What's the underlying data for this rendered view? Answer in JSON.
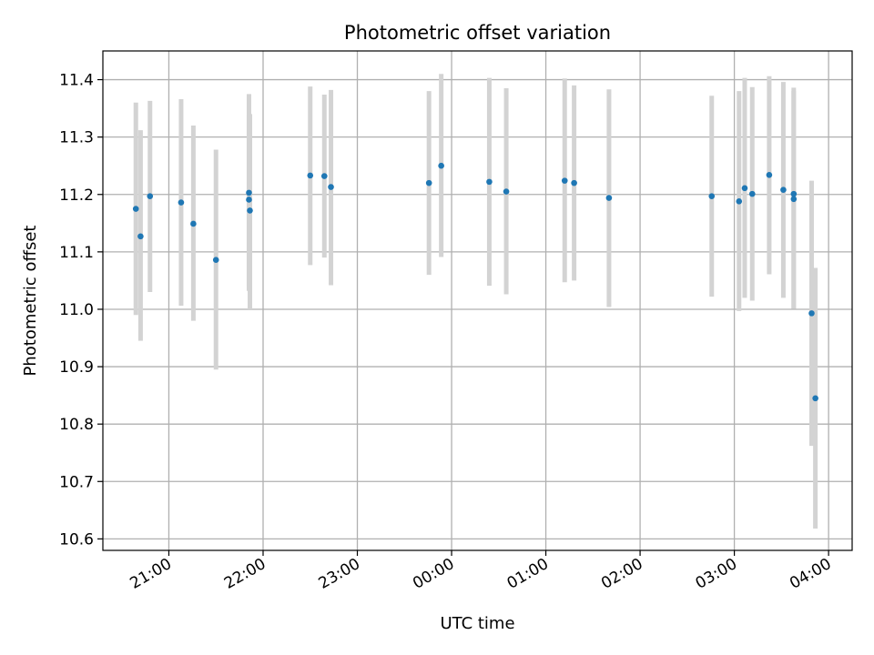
{
  "chart_data": {
    "type": "scatter",
    "title": "Photometric offset variation",
    "xlabel": "UTC time",
    "ylabel": "Photometric offset",
    "grid": true,
    "legend": "none",
    "colors": {
      "point": "#1f77b4",
      "errorbar": "#d3d3d3",
      "grid": "#b0b0b0"
    },
    "xlim": [
      -3.7,
      4.25
    ],
    "ylim": [
      10.58,
      11.45
    ],
    "xticks": [
      {
        "value": -3,
        "label": "21:00"
      },
      {
        "value": -2,
        "label": "22:00"
      },
      {
        "value": -1,
        "label": "23:00"
      },
      {
        "value": 0,
        "label": "00:00"
      },
      {
        "value": 1,
        "label": "01:00"
      },
      {
        "value": 2,
        "label": "02:00"
      },
      {
        "value": 3,
        "label": "03:00"
      },
      {
        "value": 4,
        "label": "04:00"
      }
    ],
    "yticks": [
      {
        "value": 10.6,
        "label": "10.6"
      },
      {
        "value": 10.7,
        "label": "10.7"
      },
      {
        "value": 10.8,
        "label": "10.8"
      },
      {
        "value": 10.9,
        "label": "10.9"
      },
      {
        "value": 11.0,
        "label": "11.0"
      },
      {
        "value": 11.1,
        "label": "11.1"
      },
      {
        "value": 11.2,
        "label": "11.2"
      },
      {
        "value": 11.3,
        "label": "11.3"
      },
      {
        "value": 11.4,
        "label": "11.4"
      }
    ],
    "points": [
      {
        "x": -3.35,
        "y": 11.175,
        "lo": 10.99,
        "hi": 11.36
      },
      {
        "x": -3.3,
        "y": 11.127,
        "lo": 10.945,
        "hi": 11.312
      },
      {
        "x": -3.2,
        "y": 11.197,
        "lo": 11.03,
        "hi": 11.363
      },
      {
        "x": -2.87,
        "y": 11.186,
        "lo": 11.006,
        "hi": 11.366
      },
      {
        "x": -2.74,
        "y": 11.149,
        "lo": 10.98,
        "hi": 11.32
      },
      {
        "x": -2.5,
        "y": 11.086,
        "lo": 10.895,
        "hi": 11.278
      },
      {
        "x": -2.15,
        "y": 11.203,
        "lo": 11.032,
        "hi": 11.375
      },
      {
        "x": -2.15,
        "y": 11.191,
        "lo": 11.04,
        "hi": 11.34
      },
      {
        "x": -2.14,
        "y": 11.172,
        "lo": 11.0,
        "hi": 11.34
      },
      {
        "x": -1.5,
        "y": 11.233,
        "lo": 11.077,
        "hi": 11.388
      },
      {
        "x": -1.35,
        "y": 11.232,
        "lo": 11.09,
        "hi": 11.374
      },
      {
        "x": -1.28,
        "y": 11.213,
        "lo": 11.042,
        "hi": 11.382
      },
      {
        "x": -0.24,
        "y": 11.22,
        "lo": 11.06,
        "hi": 11.38
      },
      {
        "x": -0.11,
        "y": 11.25,
        "lo": 11.091,
        "hi": 11.41
      },
      {
        "x": 0.4,
        "y": 11.222,
        "lo": 11.041,
        "hi": 11.403
      },
      {
        "x": 0.58,
        "y": 11.205,
        "lo": 11.026,
        "hi": 11.385
      },
      {
        "x": 1.2,
        "y": 11.224,
        "lo": 11.047,
        "hi": 11.402
      },
      {
        "x": 1.3,
        "y": 11.22,
        "lo": 11.05,
        "hi": 11.39
      },
      {
        "x": 1.67,
        "y": 11.194,
        "lo": 11.004,
        "hi": 11.383
      },
      {
        "x": 2.76,
        "y": 11.197,
        "lo": 11.022,
        "hi": 11.372
      },
      {
        "x": 3.05,
        "y": 11.188,
        "lo": 10.997,
        "hi": 11.38
      },
      {
        "x": 3.11,
        "y": 11.211,
        "lo": 11.02,
        "hi": 11.403
      },
      {
        "x": 3.19,
        "y": 11.201,
        "lo": 11.015,
        "hi": 11.387
      },
      {
        "x": 3.37,
        "y": 11.234,
        "lo": 11.061,
        "hi": 11.406
      },
      {
        "x": 3.52,
        "y": 11.208,
        "lo": 11.02,
        "hi": 11.396
      },
      {
        "x": 3.63,
        "y": 11.201,
        "lo": 11.001,
        "hi": 11.386
      },
      {
        "x": 3.63,
        "y": 11.192,
        "lo": 11.001,
        "hi": 11.38
      },
      {
        "x": 3.82,
        "y": 10.993,
        "lo": 10.762,
        "hi": 11.224
      },
      {
        "x": 3.86,
        "y": 10.845,
        "lo": 10.618,
        "hi": 11.072
      }
    ]
  }
}
